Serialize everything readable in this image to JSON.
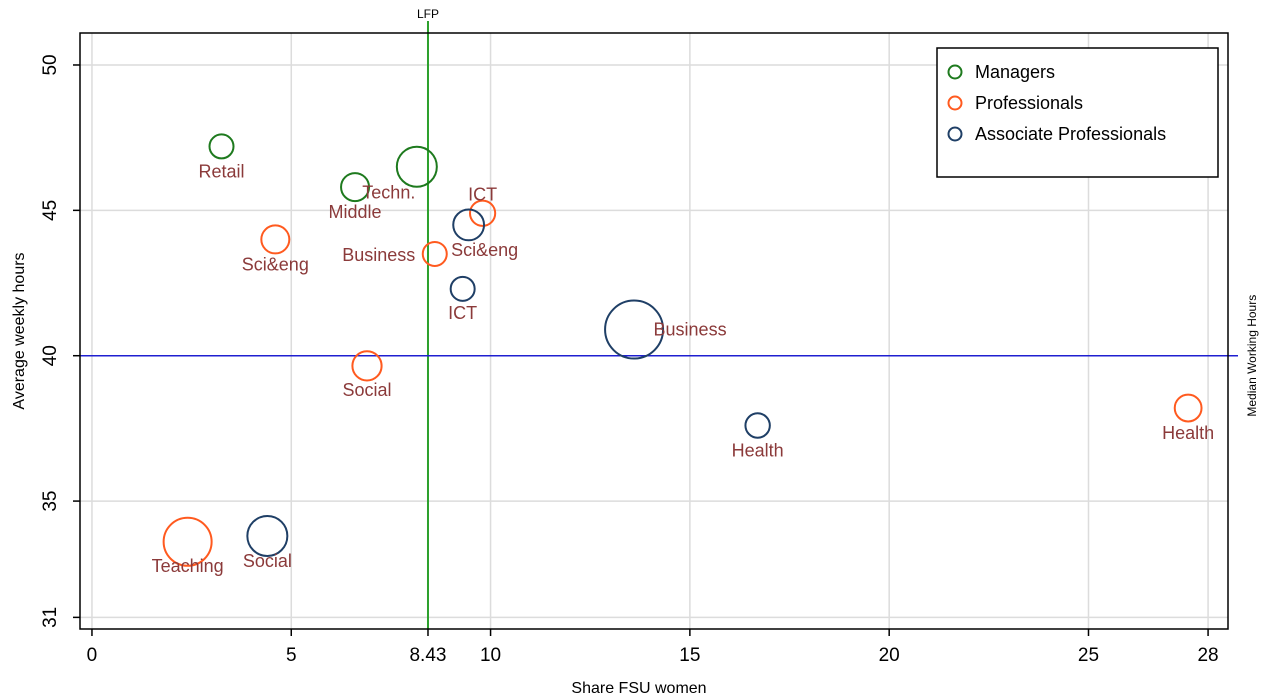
{
  "chart_data": {
    "type": "scatter",
    "xlabel": "Share FSU women",
    "ylabel": "Average weekly hours",
    "xlim": [
      -0.3,
      28.5
    ],
    "ylim": [
      30.6,
      51.1
    ],
    "xticks": [
      {
        "value": 0,
        "label": "0"
      },
      {
        "value": 5,
        "label": "5"
      },
      {
        "value": 8.43,
        "label": "8.43"
      },
      {
        "value": 10,
        "label": "10"
      },
      {
        "value": 15,
        "label": "15"
      },
      {
        "value": 20,
        "label": "20"
      },
      {
        "value": 25,
        "label": "25"
      },
      {
        "value": 28,
        "label": "28"
      }
    ],
    "yticks": [
      {
        "value": 31,
        "label": "31"
      },
      {
        "value": 35,
        "label": "35"
      },
      {
        "value": 40,
        "label": "40"
      },
      {
        "value": 45,
        "label": "45"
      },
      {
        "value": 50,
        "label": "50"
      }
    ],
    "grid": true,
    "reference_lines": [
      {
        "orientation": "vertical",
        "value": 8.43,
        "label": "LFP",
        "color": "#2ca02c"
      },
      {
        "orientation": "horizontal",
        "value": 40,
        "label": "Median Working Hours",
        "color": "#1f1fd0"
      }
    ],
    "legend": {
      "position": "top-right"
    },
    "series": [
      {
        "name": "Managers",
        "color": "#1e7a1e",
        "points": [
          {
            "label": "Retail",
            "x": 3.25,
            "y": 47.2,
            "size": 0.35
          },
          {
            "label": "Middle",
            "x": 6.6,
            "y": 45.8,
            "size": 0.45
          },
          {
            "label": "Techn.",
            "x": 8.15,
            "y": 46.5,
            "size": 0.75
          }
        ]
      },
      {
        "name": "Professionals",
        "color": "#ff5a1f",
        "points": [
          {
            "label": "Sci&eng",
            "x": 4.6,
            "y": 44.0,
            "size": 0.45
          },
          {
            "label": "ICT",
            "x": 9.8,
            "y": 44.9,
            "size": 0.38
          },
          {
            "label": "Business",
            "x": 8.6,
            "y": 43.5,
            "size": 0.35
          },
          {
            "label": "Social",
            "x": 6.9,
            "y": 39.65,
            "size": 0.48
          },
          {
            "label": "Teaching",
            "x": 2.4,
            "y": 33.6,
            "size": 0.95
          },
          {
            "label": "Health",
            "x": 27.5,
            "y": 38.2,
            "size": 0.42
          }
        ]
      },
      {
        "name": "Associate Professionals",
        "color": "#1f3f66",
        "points": [
          {
            "label": "Sci&eng",
            "x": 9.45,
            "y": 44.5,
            "size": 0.52
          },
          {
            "label": "ICT",
            "x": 9.3,
            "y": 42.3,
            "size": 0.35
          },
          {
            "label": "Business",
            "x": 13.6,
            "y": 40.9,
            "size": 1.2
          },
          {
            "label": "Health",
            "x": 16.7,
            "y": 37.6,
            "size": 0.36
          },
          {
            "label": "Social",
            "x": 4.4,
            "y": 33.8,
            "size": 0.75
          }
        ]
      }
    ]
  }
}
